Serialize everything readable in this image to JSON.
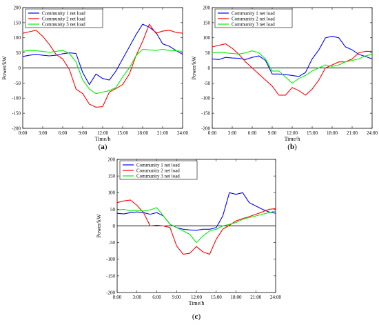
{
  "chart_data": [
    {
      "type": "line",
      "panel_label": "a",
      "xlabel": "Time/h",
      "ylabel": "Power/kW",
      "xlim": [
        0,
        24
      ],
      "ylim": [
        -200,
        200
      ],
      "xticks": [
        "0:00",
        "3:00",
        "6:00",
        "9:00",
        "12:00",
        "15:00",
        "18:00",
        "21:00",
        "24:00"
      ],
      "yticks": [
        200,
        150,
        100,
        50,
        0,
        -50,
        -100,
        -150,
        -200
      ],
      "legend": "top-left",
      "x": [
        0,
        1,
        2,
        3,
        4,
        5,
        6,
        7,
        8,
        9,
        10,
        11,
        12,
        13,
        14,
        15,
        16,
        17,
        18,
        19,
        20,
        21,
        22,
        23,
        24
      ],
      "series": [
        {
          "name": "Community 1 net load",
          "color": "#0000ff",
          "values": [
            38,
            42,
            45,
            42,
            40,
            42,
            47,
            50,
            48,
            -15,
            -55,
            -20,
            -35,
            -40,
            -10,
            30,
            70,
            110,
            145,
            135,
            118,
            80,
            72,
            58,
            45
          ]
        },
        {
          "name": "Community 2 net load",
          "color": "#ff0000",
          "values": [
            115,
            120,
            125,
            105,
            78,
            45,
            30,
            -5,
            -70,
            -85,
            -120,
            -130,
            -128,
            -80,
            -68,
            -55,
            -20,
            40,
            88,
            145,
            115,
            122,
            125,
            118,
            115
          ]
        },
        {
          "name": "Community 3 net load",
          "color": "#00ee00",
          "values": [
            55,
            58,
            57,
            55,
            52,
            55,
            58,
            48,
            20,
            -40,
            -70,
            -85,
            -80,
            -75,
            -65,
            -30,
            0,
            40,
            62,
            60,
            58,
            62,
            58,
            57,
            55
          ]
        }
      ]
    },
    {
      "type": "line",
      "panel_label": "b",
      "xlabel": "Time/h",
      "ylabel": "Power/kW",
      "xlim": [
        0,
        24
      ],
      "ylim": [
        -200,
        200
      ],
      "xticks": [
        "0:00",
        "3:00",
        "6:00",
        "9:00",
        "12:00",
        "15:00",
        "18:00",
        "21:00",
        "24:00"
      ],
      "yticks": [
        200,
        150,
        100,
        50,
        0,
        -50,
        -100,
        -150,
        -200
      ],
      "legend": "top-left",
      "x": [
        0,
        1,
        2,
        3,
        4,
        5,
        6,
        7,
        8,
        9,
        10,
        11,
        12,
        13,
        14,
        15,
        16,
        17,
        18,
        19,
        20,
        21,
        22,
        23,
        24
      ],
      "series": [
        {
          "name": "Community 1 net load",
          "color": "#0000ff",
          "values": [
            30,
            28,
            35,
            33,
            32,
            28,
            35,
            40,
            25,
            -20,
            -20,
            -22,
            -25,
            -28,
            -15,
            30,
            60,
            100,
            105,
            100,
            70,
            60,
            45,
            38,
            30
          ]
        },
        {
          "name": "Community 2 net load",
          "color": "#ff0000",
          "values": [
            70,
            75,
            80,
            65,
            45,
            20,
            0,
            -20,
            -40,
            -60,
            -90,
            -90,
            -65,
            -75,
            -90,
            -70,
            -40,
            0,
            10,
            20,
            20,
            30,
            50,
            55,
            55
          ]
        },
        {
          "name": "Community 3 net load",
          "color": "#00ee00",
          "values": [
            50,
            52,
            50,
            48,
            46,
            50,
            57,
            50,
            30,
            -10,
            -10,
            -30,
            -50,
            -35,
            -25,
            -10,
            0,
            10,
            5,
            10,
            20,
            25,
            30,
            40,
            45
          ]
        }
      ]
    },
    {
      "type": "line",
      "panel_label": "c",
      "xlabel": "Time/h",
      "ylabel": "Power/kW",
      "xlim": [
        0,
        24
      ],
      "ylim": [
        -200,
        200
      ],
      "xticks": [
        "0:00",
        "3:00",
        "6:00",
        "9:00",
        "12:00",
        "15:00",
        "18:00",
        "21:00",
        "24:00"
      ],
      "yticks": [
        200,
        150,
        100,
        50,
        0,
        -50,
        -100,
        -150,
        -200
      ],
      "legend": "top-left",
      "x": [
        0,
        1,
        2,
        3,
        4,
        5,
        6,
        7,
        8,
        9,
        10,
        11,
        12,
        13,
        14,
        15,
        16,
        17,
        18,
        19,
        20,
        21,
        22,
        23,
        24
      ],
      "series": [
        {
          "name": "Community 1 net load",
          "color": "#0000ff",
          "values": [
            38,
            36,
            40,
            42,
            40,
            35,
            40,
            30,
            5,
            -5,
            -10,
            -12,
            -13,
            -10,
            -10,
            -5,
            30,
            100,
            95,
            100,
            70,
            60,
            50,
            42,
            38
          ]
        },
        {
          "name": "Community 2 net load",
          "color": "#ff0000",
          "values": [
            70,
            75,
            78,
            62,
            40,
            0,
            2,
            0,
            -5,
            -60,
            -85,
            -82,
            -62,
            -78,
            -85,
            -40,
            -10,
            2,
            15,
            22,
            28,
            35,
            42,
            50,
            52
          ]
        },
        {
          "name": "Community 3 net load",
          "color": "#00ee00",
          "values": [
            48,
            50,
            45,
            47,
            45,
            48,
            55,
            30,
            5,
            -5,
            -15,
            -25,
            -50,
            -30,
            -15,
            -10,
            0,
            5,
            10,
            20,
            25,
            30,
            35,
            40,
            45
          ]
        }
      ]
    }
  ]
}
